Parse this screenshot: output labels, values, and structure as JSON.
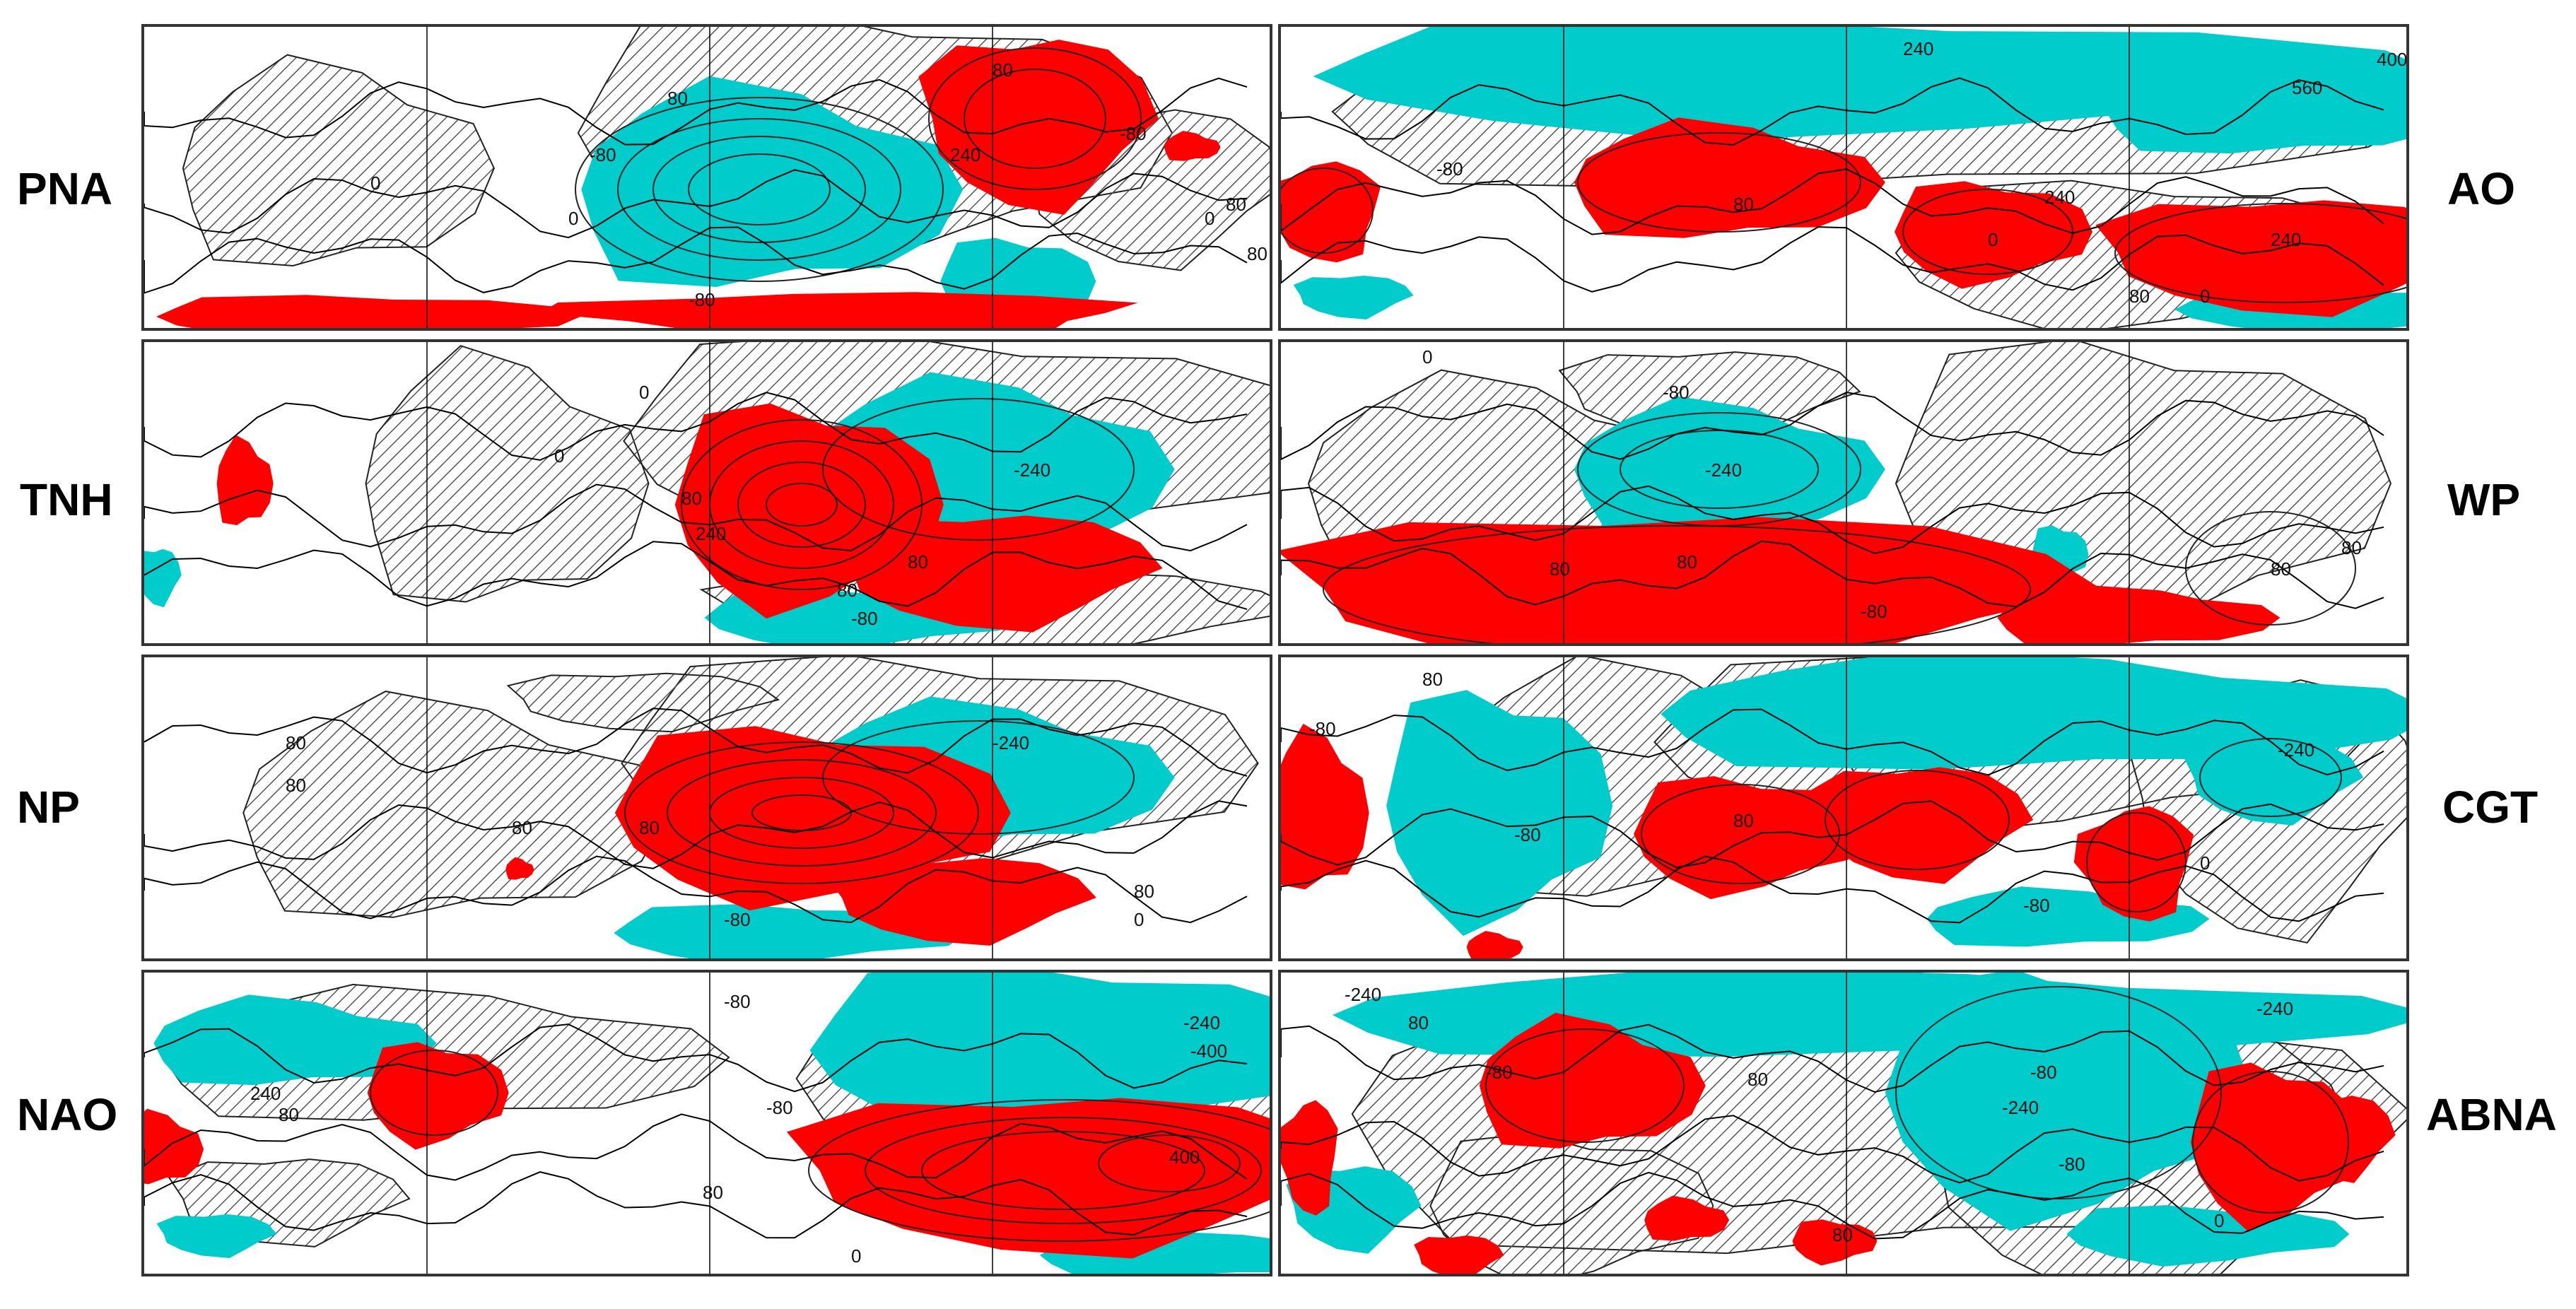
{
  "colors": {
    "positive": "#ff0000",
    "negative": "#00cccc",
    "hatch": "#555555",
    "contour": "#222222",
    "coast": "#000000"
  },
  "panels": [
    {
      "id": "PNA",
      "label": "PNA",
      "contour_labels": [
        "-80",
        "80",
        "0",
        "-80",
        "0",
        "80",
        "240",
        "80",
        "-80",
        "0",
        "80"
      ]
    },
    {
      "id": "AO",
      "label": "AO",
      "contour_labels": [
        "240",
        "400",
        "560",
        "-80",
        "80",
        "240",
        "240",
        "0",
        "80",
        "0"
      ]
    },
    {
      "id": "TNH",
      "label": "TNH",
      "contour_labels": [
        "0",
        "80",
        "240",
        "-240",
        "80",
        "80",
        "-80",
        "0"
      ]
    },
    {
      "id": "WP",
      "label": "WP",
      "contour_labels": [
        "0",
        "-80",
        "-240",
        "80",
        "80",
        "-80",
        "80",
        "80"
      ]
    },
    {
      "id": "NP",
      "label": "NP",
      "contour_labels": [
        "80",
        "80",
        "80",
        "-240",
        "80",
        "80",
        "-80",
        "0"
      ]
    },
    {
      "id": "CGT",
      "label": "CGT",
      "contour_labels": [
        "80",
        "-80",
        "-80",
        "-240",
        "80",
        "-80",
        "0"
      ]
    },
    {
      "id": "NAO",
      "label": "NAO",
      "contour_labels": [
        "-80",
        "240",
        "80",
        "-80",
        "-400",
        "-240",
        "80",
        "400",
        "0"
      ]
    },
    {
      "id": "ABNA",
      "label": "ABNA",
      "contour_labels": [
        "-240",
        "80",
        "-240",
        "-80",
        "80",
        "-80",
        "80",
        "-80",
        "-240",
        "0"
      ]
    }
  ]
}
